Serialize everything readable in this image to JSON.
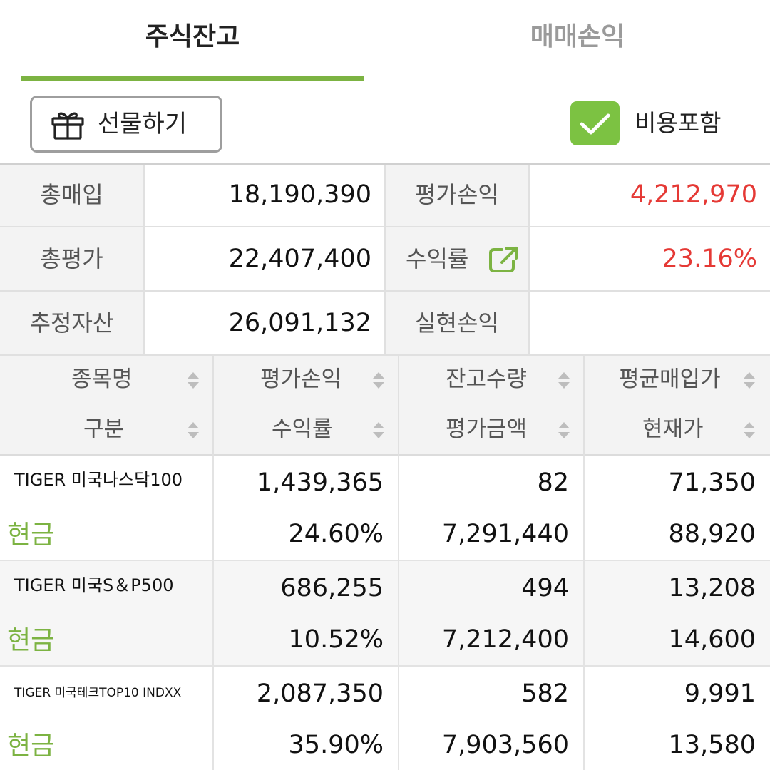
{
  "tabs": [
    {
      "label": "주식잔고",
      "active": true
    },
    {
      "label": "매매손익",
      "active": false
    }
  ],
  "toolbar": {
    "gift_label": "선물하기",
    "gift_icon": "gift-icon",
    "include_fee_label": "비용포함",
    "include_fee_checked": true
  },
  "summary": {
    "total_purchase_label": "총매입",
    "total_purchase_value": "18,190,390",
    "eval_pl_label": "평가손익",
    "eval_pl_value": "4,212,970",
    "total_eval_label": "총평가",
    "total_eval_value": "22,407,400",
    "return_label": "수익률",
    "return_value": "23.16%",
    "est_asset_label": "추정자산",
    "est_asset_value": "26,091,132",
    "realized_pl_label": "실현손익",
    "realized_pl_value": ""
  },
  "columns": {
    "c0_top": "종목명",
    "c0_bot": "구분",
    "c1_top": "평가손익",
    "c1_bot": "수익률",
    "c2_top": "잔고수량",
    "c2_bot": "평가금액",
    "c3_top": "평균매입가",
    "c3_bot": "현재가"
  },
  "holdings": [
    {
      "name": "TIGER 미국나스닥100",
      "type": "현금",
      "eval_pl": "1,439,365",
      "return": "24.60%",
      "qty": "82",
      "eval_amount": "7,291,440",
      "avg_price": "71,350",
      "cur_price": "88,920"
    },
    {
      "name": "TIGER 미국S＆P500",
      "type": "현금",
      "eval_pl": "686,255",
      "return": "10.52%",
      "qty": "494",
      "eval_amount": "7,212,400",
      "avg_price": "13,208",
      "cur_price": "14,600"
    },
    {
      "name": "TIGER 미국테크TOP10 INDXX",
      "type": "현금",
      "eval_pl": "2,087,350",
      "return": "35.90%",
      "qty": "582",
      "eval_amount": "7,903,560",
      "avg_price": "9,991",
      "cur_price": "13,580"
    }
  ],
  "colors": {
    "accent": "#7cb342",
    "positive": "#e53935",
    "checkbox": "#7cc242"
  }
}
